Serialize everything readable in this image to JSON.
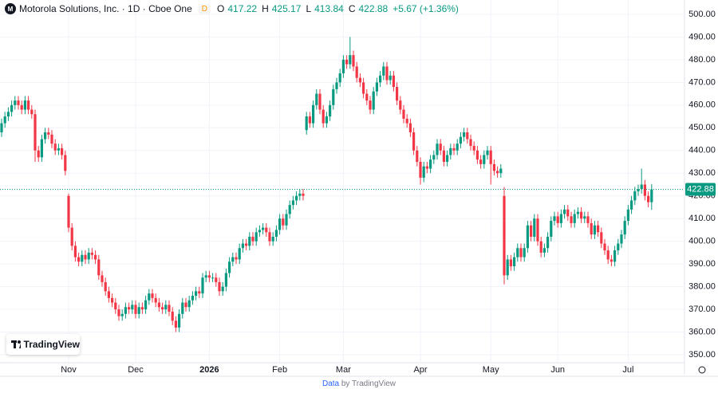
{
  "header": {
    "title": "Motorola Solutions, Inc. · 1D · Cboe One",
    "badge": "D",
    "ohlc_labels": [
      "O",
      "H",
      "L",
      "C"
    ],
    "change": "+5.67 (+1.36%)"
  },
  "footer": {
    "data": "Data",
    "by": "by TradingView",
    "logo": "TradingView"
  },
  "chart_data": {
    "type": "candlestick",
    "up_color": "#089981",
    "down_color": "#f23645",
    "grid": true,
    "ylim": [
      346.5,
      506.3
    ],
    "yticks": [
      {
        "value": 350,
        "label": "350.00"
      },
      {
        "value": 360,
        "label": "360.00"
      },
      {
        "value": 370,
        "label": "370.00"
      },
      {
        "value": 380,
        "label": "380.00"
      },
      {
        "value": 390,
        "label": "390.00"
      },
      {
        "value": 400,
        "label": "400.00"
      },
      {
        "value": 410,
        "label": "410.00"
      },
      {
        "value": 420,
        "label": "420.00"
      },
      {
        "value": 430,
        "label": "430.00"
      },
      {
        "value": 440,
        "label": "440.00"
      },
      {
        "value": 450,
        "label": "450.00"
      },
      {
        "value": 460,
        "label": "460.00"
      },
      {
        "value": 470,
        "label": "470.00"
      },
      {
        "value": 480,
        "label": "480.00"
      },
      {
        "value": 490,
        "label": "490.00"
      },
      {
        "value": 500,
        "label": "500.00"
      }
    ],
    "categories": [
      null,
      null,
      null,
      null,
      null,
      null,
      null,
      null,
      null,
      null,
      null,
      null,
      null,
      null,
      null,
      null,
      null,
      null,
      null,
      null,
      "Nov",
      null,
      null,
      null,
      null,
      null,
      null,
      null,
      null,
      null,
      null,
      null,
      null,
      null,
      null,
      null,
      null,
      null,
      null,
      null,
      "Dec",
      null,
      null,
      null,
      null,
      null,
      null,
      null,
      null,
      null,
      null,
      null,
      null,
      null,
      null,
      null,
      null,
      null,
      null,
      null,
      null,
      null,
      "2026",
      null,
      null,
      null,
      null,
      null,
      null,
      null,
      null,
      null,
      null,
      null,
      null,
      null,
      null,
      null,
      null,
      null,
      null,
      null,
      null,
      "Feb",
      null,
      null,
      null,
      null,
      null,
      null,
      null,
      null,
      null,
      null,
      null,
      null,
      null,
      null,
      null,
      null,
      null,
      null,
      "Mar",
      null,
      null,
      null,
      null,
      null,
      null,
      null,
      null,
      null,
      null,
      null,
      null,
      null,
      null,
      null,
      null,
      null,
      null,
      null,
      null,
      null,
      null,
      "Apr",
      null,
      null,
      null,
      null,
      null,
      null,
      null,
      null,
      null,
      null,
      null,
      null,
      null,
      null,
      null,
      null,
      null,
      null,
      null,
      null,
      "May",
      null,
      null,
      null,
      null,
      null,
      null,
      null,
      null,
      null,
      null,
      null,
      null,
      null,
      null,
      null,
      null,
      null,
      null,
      null,
      "Jun",
      null,
      null,
      null,
      null,
      null,
      null,
      null,
      null,
      null,
      null,
      null,
      null,
      null,
      null,
      null,
      null,
      null,
      null,
      null,
      null,
      "Jul",
      null,
      null,
      null,
      null,
      null,
      null,
      null
    ],
    "open": [
      448,
      452,
      455,
      457,
      460,
      462,
      460,
      458,
      462,
      458,
      456,
      440,
      437,
      445,
      448,
      447,
      443,
      440,
      441,
      438,
      420,
      406,
      398,
      393,
      391,
      394,
      392,
      395,
      394,
      392,
      385,
      382,
      378,
      375,
      373,
      370,
      367,
      368,
      371,
      370,
      372,
      368,
      371,
      370,
      374,
      377,
      375,
      373,
      371,
      370,
      372,
      369,
      365,
      362,
      368,
      373,
      371,
      374,
      376,
      378,
      377,
      384,
      385,
      384,
      384,
      382,
      378,
      380,
      386,
      391,
      393,
      392,
      397,
      399,
      398,
      402,
      400,
      404,
      405,
      406,
      404,
      400,
      402,
      405,
      410,
      407,
      412,
      416,
      418,
      420,
      421,
      449,
      455,
      452,
      460,
      465,
      458,
      452,
      455,
      460,
      467,
      470,
      474,
      480,
      478,
      482,
      477,
      472,
      470,
      465,
      462,
      458,
      466,
      470,
      473,
      477,
      471,
      473,
      468,
      462,
      458,
      454,
      452,
      448,
      440,
      435,
      428,
      433,
      432,
      436,
      438,
      443,
      440,
      435,
      438,
      441,
      440,
      443,
      446,
      448,
      445,
      442,
      440,
      436,
      434,
      438,
      440,
      434,
      431,
      430,
      420,
      385,
      392,
      389,
      393,
      397,
      393,
      397,
      407,
      402,
      410,
      400,
      395,
      397,
      402,
      409,
      411,
      408,
      412,
      414,
      411,
      408,
      412,
      413,
      410,
      411,
      408,
      403,
      407,
      404,
      399,
      396,
      392,
      391,
      396,
      399,
      403,
      409,
      414,
      418,
      422,
      423,
      425,
      420,
      417.22
    ],
    "high": [
      454,
      457,
      459,
      462,
      464,
      464,
      462,
      464,
      464,
      460,
      458,
      442,
      447,
      450,
      450,
      449,
      445,
      443,
      443,
      440,
      421,
      408,
      400,
      395,
      396,
      396,
      397,
      397,
      396,
      394,
      387,
      384,
      380,
      377,
      375,
      372,
      370,
      373,
      373,
      374,
      374,
      373,
      373,
      376,
      379,
      379,
      377,
      375,
      373,
      374,
      374,
      371,
      367,
      370,
      375,
      375,
      376,
      378,
      380,
      380,
      386,
      387,
      387,
      386,
      386,
      384,
      382,
      388,
      393,
      395,
      395,
      399,
      401,
      401,
      404,
      404,
      406,
      407,
      408,
      408,
      406,
      404,
      407,
      412,
      412,
      414,
      418,
      420,
      422,
      423,
      423,
      457,
      457,
      462,
      467,
      467,
      460,
      457,
      462,
      469,
      472,
      476,
      482,
      482,
      490,
      484,
      479,
      474,
      472,
      467,
      464,
      468,
      472,
      475,
      479,
      479,
      475,
      475,
      470,
      464,
      460,
      456,
      454,
      450,
      442,
      437,
      435,
      435,
      438,
      440,
      445,
      445,
      442,
      440,
      443,
      443,
      445,
      448,
      450,
      450,
      447,
      444,
      442,
      438,
      440,
      442,
      442,
      436,
      433,
      434,
      424,
      394,
      394,
      395,
      399,
      399,
      399,
      409,
      409,
      412,
      412,
      402,
      399,
      404,
      411,
      413,
      413,
      414,
      416,
      416,
      413,
      414,
      415,
      415,
      413,
      413,
      410,
      409,
      409,
      406,
      401,
      398,
      394,
      398,
      401,
      405,
      411,
      416,
      420,
      424,
      425,
      432,
      427,
      422,
      425.17
    ],
    "low": [
      446,
      450,
      453,
      455,
      458,
      458,
      456,
      456,
      456,
      454,
      435,
      435,
      435,
      443,
      445,
      441,
      438,
      438,
      436,
      429,
      404,
      396,
      391,
      389,
      389,
      390,
      390,
      392,
      390,
      383,
      380,
      376,
      373,
      371,
      368,
      365,
      365,
      366,
      368,
      368,
      366,
      366,
      368,
      368,
      372,
      373,
      371,
      369,
      368,
      368,
      367,
      363,
      360,
      360,
      366,
      369,
      369,
      372,
      374,
      375,
      375,
      382,
      382,
      382,
      380,
      376,
      376,
      378,
      384,
      389,
      390,
      390,
      395,
      396,
      396,
      398,
      398,
      402,
      403,
      402,
      398,
      398,
      400,
      403,
      405,
      405,
      410,
      414,
      416,
      418,
      418,
      447,
      450,
      450,
      458,
      456,
      450,
      450,
      453,
      458,
      465,
      468,
      472,
      476,
      476,
      475,
      470,
      468,
      463,
      460,
      456,
      456,
      464,
      468,
      471,
      469,
      469,
      466,
      460,
      456,
      452,
      450,
      446,
      438,
      433,
      425,
      426,
      430,
      430,
      434,
      436,
      438,
      433,
      433,
      436,
      438,
      438,
      441,
      444,
      443,
      440,
      438,
      434,
      432,
      432,
      436,
      425,
      429,
      428,
      428,
      381,
      383,
      387,
      387,
      391,
      391,
      391,
      395,
      400,
      400,
      398,
      393,
      393,
      395,
      400,
      407,
      406,
      406,
      410,
      409,
      406,
      406,
      410,
      408,
      408,
      406,
      401,
      401,
      402,
      397,
      394,
      390,
      389,
      389,
      394,
      397,
      401,
      407,
      412,
      416,
      420,
      421,
      418,
      415,
      413.84
    ],
    "close": [
      452,
      455,
      457,
      460,
      462,
      460,
      458,
      462,
      458,
      456,
      440,
      437,
      445,
      448,
      447,
      443,
      440,
      441,
      438,
      431,
      406,
      398,
      393,
      391,
      394,
      392,
      395,
      394,
      392,
      385,
      382,
      378,
      375,
      373,
      370,
      367,
      368,
      371,
      370,
      372,
      368,
      371,
      370,
      374,
      377,
      375,
      373,
      371,
      370,
      372,
      369,
      365,
      362,
      368,
      373,
      371,
      374,
      376,
      378,
      377,
      384,
      385,
      384,
      384,
      382,
      378,
      380,
      386,
      391,
      393,
      392,
      397,
      399,
      398,
      402,
      400,
      404,
      405,
      406,
      404,
      400,
      402,
      405,
      410,
      407,
      412,
      416,
      418,
      420,
      421,
      420,
      455,
      452,
      460,
      465,
      458,
      452,
      455,
      460,
      467,
      470,
      474,
      480,
      478,
      482,
      477,
      472,
      470,
      465,
      462,
      458,
      466,
      470,
      473,
      477,
      471,
      473,
      468,
      462,
      458,
      454,
      452,
      448,
      440,
      435,
      428,
      433,
      432,
      436,
      438,
      443,
      440,
      435,
      438,
      441,
      440,
      443,
      446,
      448,
      445,
      442,
      440,
      436,
      434,
      438,
      440,
      434,
      431,
      430,
      432,
      385,
      392,
      389,
      393,
      397,
      393,
      397,
      407,
      402,
      410,
      400,
      395,
      397,
      402,
      409,
      411,
      408,
      412,
      414,
      411,
      408,
      412,
      413,
      410,
      411,
      408,
      403,
      407,
      404,
      399,
      396,
      392,
      391,
      396,
      399,
      403,
      409,
      414,
      418,
      422,
      423,
      425,
      420,
      417.21,
      422.88
    ]
  }
}
